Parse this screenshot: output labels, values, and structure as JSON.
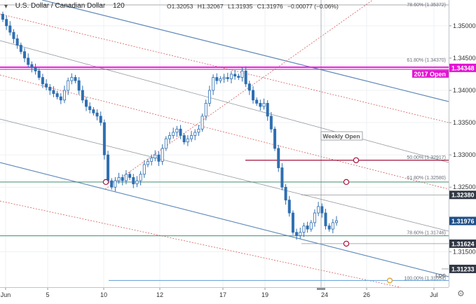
{
  "header": {
    "symbol": "U.S. Dollar / Canadian Dollar",
    "timeframe": "120",
    "ohlc": [
      "O1.32053",
      "H1.32067",
      "L1.31935",
      "C1.31976",
      "−0.00077 (−0.06%)"
    ]
  },
  "colors": {
    "candle": "#2f6fb1",
    "channel": "#5b86b8",
    "red_dotted": "#d65b5b",
    "magenta": "#e415d4",
    "green_line": "#3f8f6e",
    "dark_red": "#a3123a",
    "gray_line": "#8a8f96",
    "last_price": "#1f4f87",
    "horizontal_badge": "#323844",
    "magenta_badge": "#e415d4"
  },
  "chart_data": {
    "type": "candlestick",
    "instrument": "U.S. Dollar / Canadian Dollar",
    "interval": "120",
    "y_range": [
      1.3095,
      1.354
    ],
    "x_ticks": [
      "Jun",
      "5",
      "10",
      "12",
      "17",
      "19",
      "24",
      "26",
      "Jul"
    ],
    "y_ticks": [
      "1.35000",
      "1.34500",
      "1.34000",
      "1.33500",
      "1.33000",
      "1.32500",
      "1.31500"
    ],
    "price_badges": [
      {
        "label": "1.34348",
        "value": 1.34348,
        "style": "magenta"
      },
      {
        "label": "1.32380",
        "value": 1.3238,
        "style": "dark"
      },
      {
        "label": "1.31976",
        "value": 1.31976,
        "style": "last"
      },
      {
        "label": "1.31624",
        "value": 1.31624,
        "style": "dark"
      },
      {
        "label": "1.31233",
        "value": 1.31233,
        "style": "dark"
      }
    ],
    "annotations": {
      "open_2017": "2017 Open",
      "weekly_open": "Weekly Open",
      "loc": "LOC",
      "fib_labels": [
        {
          "text": "78.60% (1.35372)",
          "value": 1.35372
        },
        {
          "text": "61.80% (1.34370)",
          "value": 1.3437
        },
        {
          "text": "50.00% (1.32917)",
          "value": 1.32917
        },
        {
          "text": "61.80% (1.32580)",
          "value": 1.3258
        },
        {
          "text": "78.60% (1.31746)",
          "value": 1.31746
        },
        {
          "text": "100.00% (1.31054)",
          "value": 1.31054
        }
      ]
    },
    "series_close": [
      1.351,
      1.35,
      1.349,
      1.348,
      1.347,
      1.346,
      1.345,
      1.344,
      1.3435,
      1.343,
      1.342,
      1.341,
      1.3405,
      1.34,
      1.3395,
      1.339,
      1.3385,
      1.34,
      1.3415,
      1.342,
      1.3415,
      1.34,
      1.3385,
      1.3375,
      1.337,
      1.3365,
      1.336,
      1.335,
      1.33,
      1.326,
      1.325,
      1.326,
      1.3265,
      1.326,
      1.327,
      1.3265,
      1.3255,
      1.326,
      1.327,
      1.3285,
      1.329,
      1.3295,
      1.33,
      1.329,
      1.331,
      1.3325,
      1.333,
      1.3335,
      1.334,
      1.333,
      1.332,
      1.3325,
      1.333,
      1.3335,
      1.334,
      1.336,
      1.338,
      1.34,
      1.342,
      1.3415,
      1.3418,
      1.342,
      1.3418,
      1.3425,
      1.3422,
      1.342,
      1.343,
      1.341,
      1.34,
      1.3385,
      1.338,
      1.3375,
      1.338,
      1.336,
      1.334,
      1.331,
      1.328,
      1.325,
      1.323,
      1.321,
      1.318,
      1.3175,
      1.318,
      1.319,
      1.3185,
      1.3195,
      1.321,
      1.322,
      1.321,
      1.319,
      1.3185,
      1.3195,
      1.3198
    ]
  }
}
